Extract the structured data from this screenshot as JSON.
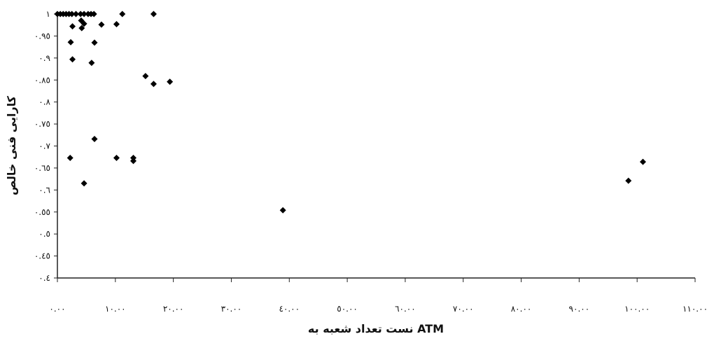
{
  "chart_data": {
    "type": "scatter",
    "title": "",
    "xlabel": "نست تعداد شعبه به ATM",
    "ylabel": "کارایی فنی خالص",
    "xlim": [
      0,
      110
    ],
    "ylim": [
      0.4,
      1.0
    ],
    "grid": false,
    "legend": "none",
    "x_ticks": [
      0,
      10,
      20,
      30,
      40,
      50,
      60,
      70,
      80,
      90,
      100,
      110
    ],
    "x_tick_labels": [
      "٠.٠٠",
      "١٠.٠٠",
      "٢٠.٠٠",
      "٣٠.٠٠",
      "٤٠.٠٠",
      "٥٠.٠٠",
      "٦٠.٠٠",
      "٧٠.٠٠",
      "٨٠.٠٠",
      "٩٠.٠٠",
      "١٠٠.٠٠",
      "١١٠.٠٠"
    ],
    "y_ticks": [
      1.0,
      0.95,
      0.9,
      0.85,
      0.8,
      0.75,
      0.7,
      0.65,
      0.6,
      0.55,
      0.5,
      0.45,
      0.4
    ],
    "y_tick_labels": [
      "١",
      "٠.٩٥",
      "٠.٩",
      "٠.٨٥",
      "٠.٨",
      "٠.٧٥",
      "٠.٧",
      "٠.٦٥",
      "٠.٦",
      "٠.٥٥",
      "٠.٥",
      "٠.٤٥",
      "٠.٤"
    ],
    "marker_color": "#000000",
    "series": [
      {
        "points": [
          [
            0,
            1.0
          ],
          [
            0.5,
            1.0
          ],
          [
            1.0,
            1.0
          ],
          [
            1.5,
            1.0
          ],
          [
            2.0,
            1.0
          ],
          [
            2.5,
            1.0
          ],
          [
            3.2,
            1.0
          ],
          [
            4.0,
            1.0
          ],
          [
            4.6,
            1.0
          ],
          [
            5.3,
            1.0
          ],
          [
            5.8,
            1.0
          ],
          [
            6.3,
            1.0
          ],
          [
            11.2,
            1.0
          ],
          [
            16.6,
            1.0
          ],
          [
            4.1,
            0.985
          ],
          [
            4.6,
            0.978
          ],
          [
            2.6,
            0.972
          ],
          [
            4.2,
            0.968
          ],
          [
            7.6,
            0.976
          ],
          [
            10.2,
            0.977
          ],
          [
            2.3,
            0.936
          ],
          [
            6.4,
            0.935
          ],
          [
            2.6,
            0.897
          ],
          [
            5.9,
            0.889
          ],
          [
            15.2,
            0.859
          ],
          [
            16.6,
            0.841
          ],
          [
            19.4,
            0.846
          ],
          [
            6.4,
            0.716
          ],
          [
            2.2,
            0.673
          ],
          [
            10.2,
            0.673
          ],
          [
            13.1,
            0.673
          ],
          [
            13.1,
            0.666
          ],
          [
            4.6,
            0.615
          ],
          [
            38.9,
            0.554
          ],
          [
            98.5,
            0.621
          ],
          [
            101.0,
            0.664
          ]
        ]
      }
    ]
  }
}
